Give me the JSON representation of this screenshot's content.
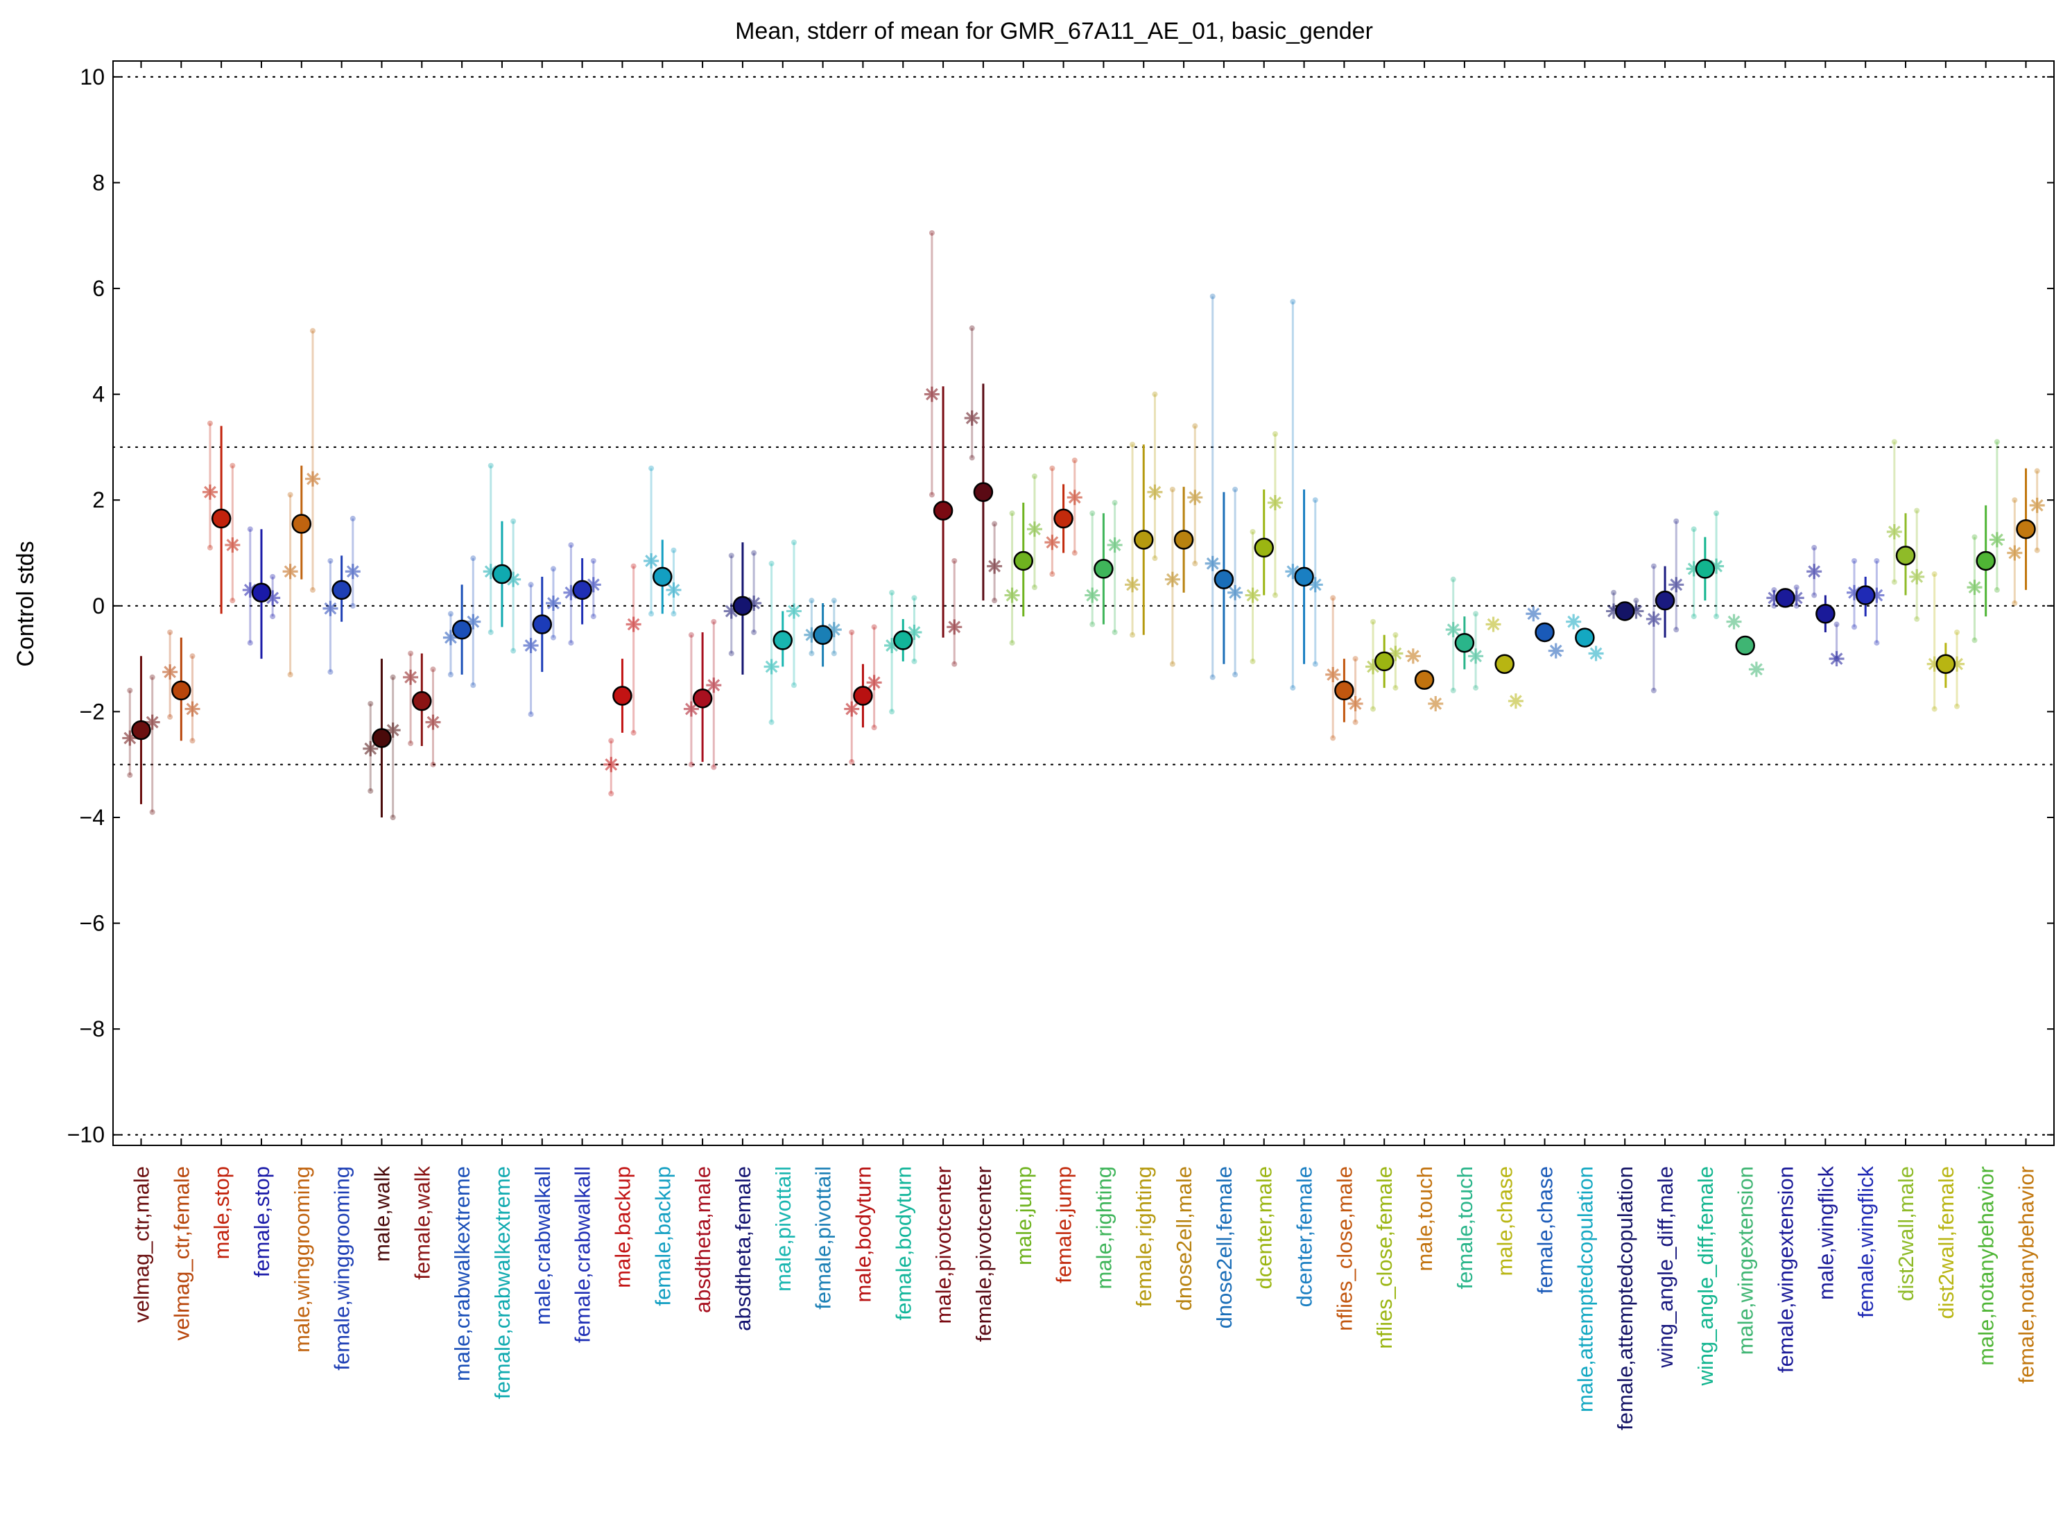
{
  "chart_data": {
    "type": "scatter",
    "title": "Mean, stderr of mean for GMR_67A11_AE_01, basic_gender",
    "xlabel": "",
    "ylabel": "Control stds",
    "ylim": [
      -10.2,
      10.3
    ],
    "yticks": [
      10,
      8,
      6,
      4,
      2,
      0,
      -2,
      -4,
      -6,
      -8,
      -10
    ],
    "ytick_labels": [
      "10",
      "8",
      "6",
      "4",
      "2",
      "0",
      "−2",
      "−4",
      "−6",
      "−8",
      "−10"
    ],
    "reference_lines": [
      10,
      3,
      0,
      -3,
      -10
    ],
    "grid": false,
    "categories": [
      {
        "label": "velmag_ctr,male",
        "color": "#6b0f0f",
        "mean": -2.35,
        "low": -3.75,
        "high": -0.95,
        "side": [
          -2.5,
          -2.2
        ],
        "faint": [
          -3.2,
          -1.6,
          -3.9,
          -1.35
        ]
      },
      {
        "label": "velmag_ctr,female",
        "color": "#b8460b",
        "mean": -1.6,
        "low": -2.55,
        "high": -0.6,
        "side": [
          -1.25,
          -1.95
        ],
        "faint": [
          -2.1,
          -0.5,
          -2.55,
          -0.95
        ]
      },
      {
        "label": "male,stop",
        "color": "#c2220c",
        "mean": 1.65,
        "low": -0.15,
        "high": 3.4,
        "side": [
          2.15,
          1.15
        ],
        "faint": [
          1.1,
          3.45,
          0.1,
          2.65
        ]
      },
      {
        "label": "female,stop",
        "color": "#1a1aa8",
        "mean": 0.25,
        "low": -1.0,
        "high": 1.45,
        "side": [
          0.3,
          0.15
        ],
        "faint": [
          -0.7,
          1.45,
          -0.2,
          0.55
        ]
      },
      {
        "label": "male,winggrooming",
        "color": "#c0630f",
        "mean": 1.55,
        "low": 0.5,
        "high": 2.65,
        "side": [
          0.65,
          2.4
        ],
        "faint": [
          -1.3,
          2.1,
          0.3,
          5.2
        ]
      },
      {
        "label": "female,winggrooming",
        "color": "#1e3fb5",
        "mean": 0.3,
        "low": -0.3,
        "high": 0.95,
        "side": [
          -0.05,
          0.65
        ],
        "faint": [
          -1.25,
          0.85,
          0.0,
          1.65
        ]
      },
      {
        "label": "male,walk",
        "color": "#4a0a0a",
        "mean": -2.5,
        "low": -4.0,
        "high": -1.0,
        "side": [
          -2.7,
          -2.35
        ],
        "faint": [
          -3.5,
          -1.85,
          -4.0,
          -1.35
        ]
      },
      {
        "label": "female,walk",
        "color": "#8a1414",
        "mean": -1.8,
        "low": -2.65,
        "high": -0.9,
        "side": [
          -1.35,
          -2.2
        ],
        "faint": [
          -2.6,
          -0.9,
          -3.0,
          -1.2
        ]
      },
      {
        "label": "male,crabwalkextreme",
        "color": "#1a4fb8",
        "mean": -0.45,
        "low": -1.3,
        "high": 0.4,
        "side": [
          -0.6,
          -0.3
        ],
        "faint": [
          -1.3,
          -0.15,
          -1.5,
          0.9
        ]
      },
      {
        "label": "female,crabwalkextreme",
        "color": "#10aab0",
        "mean": 0.6,
        "low": -0.4,
        "high": 1.6,
        "side": [
          0.65,
          0.5
        ],
        "faint": [
          -0.5,
          2.65,
          -0.85,
          1.6
        ]
      },
      {
        "label": "male,crabwalkall",
        "color": "#1c3cb8",
        "mean": -0.35,
        "low": -1.25,
        "high": 0.55,
        "side": [
          -0.75,
          0.05
        ],
        "faint": [
          -2.05,
          0.4,
          -0.6,
          0.7
        ]
      },
      {
        "label": "female,crabwalkall",
        "color": "#1f2fb5",
        "mean": 0.3,
        "low": -0.35,
        "high": 0.9,
        "side": [
          0.25,
          0.4
        ],
        "faint": [
          -0.7,
          1.15,
          -0.2,
          0.85
        ]
      },
      {
        "label": "male,backup",
        "color": "#c21313",
        "mean": -1.7,
        "low": -2.4,
        "high": -1.0,
        "side": [
          -3.0,
          -0.35
        ],
        "faint": [
          -3.55,
          -2.55,
          -2.4,
          0.75
        ]
      },
      {
        "label": "female,backup",
        "color": "#139fc2",
        "mean": 0.55,
        "low": -0.15,
        "high": 1.25,
        "side": [
          0.85,
          0.3
        ],
        "faint": [
          -0.15,
          2.6,
          -0.15,
          1.05
        ]
      },
      {
        "label": "absdtheta,male",
        "color": "#a8101f",
        "mean": -1.75,
        "low": -2.95,
        "high": -0.5,
        "side": [
          -1.95,
          -1.5
        ],
        "faint": [
          -3.0,
          -0.55,
          -3.05,
          -0.3
        ]
      },
      {
        "label": "absdtheta,female",
        "color": "#141470",
        "mean": 0.0,
        "low": -1.3,
        "high": 1.2,
        "side": [
          -0.1,
          0.05
        ],
        "faint": [
          -0.9,
          0.95,
          -0.5,
          1.0
        ]
      },
      {
        "label": "male,pivottail",
        "color": "#18b5b0",
        "mean": -0.65,
        "low": -1.15,
        "high": -0.1,
        "side": [
          -1.15,
          -0.1
        ],
        "faint": [
          -2.2,
          0.8,
          -1.5,
          1.2
        ]
      },
      {
        "label": "female,pivottail",
        "color": "#1a7fb5",
        "mean": -0.55,
        "low": -1.15,
        "high": 0.05,
        "side": [
          -0.55,
          -0.45
        ],
        "faint": [
          -0.9,
          0.1,
          -0.9,
          0.1
        ]
      },
      {
        "label": "male,bodyturn",
        "color": "#b81111",
        "mean": -1.7,
        "low": -2.3,
        "high": -1.1,
        "side": [
          -1.95,
          -1.45
        ],
        "faint": [
          -2.95,
          -0.5,
          -2.3,
          -0.4
        ]
      },
      {
        "label": "female,bodyturn",
        "color": "#12b59a",
        "mean": -0.65,
        "low": -1.05,
        "high": -0.25,
        "side": [
          -0.75,
          -0.5
        ],
        "faint": [
          -2.0,
          0.25,
          -1.05,
          0.15
        ]
      },
      {
        "label": "male,pivotcenter",
        "color": "#7a0a12",
        "mean": 1.8,
        "low": -0.6,
        "high": 4.15,
        "side": [
          4.0,
          -0.4
        ],
        "faint": [
          2.1,
          7.05,
          -1.1,
          0.85
        ]
      },
      {
        "label": "female,pivotcenter",
        "color": "#5a0a14",
        "mean": 2.15,
        "low": 0.1,
        "high": 4.2,
        "side": [
          3.55,
          0.75
        ],
        "faint": [
          2.8,
          5.25,
          0.1,
          1.55
        ]
      },
      {
        "label": "male,jump",
        "color": "#6fb31f",
        "mean": 0.85,
        "low": -0.2,
        "high": 1.95,
        "side": [
          0.2,
          1.45
        ],
        "faint": [
          -0.7,
          1.75,
          0.35,
          2.45
        ]
      },
      {
        "label": "female,jump",
        "color": "#c22a0c",
        "mean": 1.65,
        "low": 1.0,
        "high": 2.3,
        "side": [
          1.2,
          2.05
        ],
        "faint": [
          0.6,
          2.6,
          1.0,
          2.75
        ]
      },
      {
        "label": "male,righting",
        "color": "#3fb55a",
        "mean": 0.7,
        "low": -0.35,
        "high": 1.75,
        "side": [
          0.2,
          1.15
        ],
        "faint": [
          -0.35,
          1.75,
          -0.5,
          1.95
        ]
      },
      {
        "label": "female,righting",
        "color": "#b59a0f",
        "mean": 1.25,
        "low": -0.55,
        "high": 3.05,
        "side": [
          0.4,
          2.15
        ],
        "faint": [
          -0.55,
          3.05,
          0.9,
          4.0
        ]
      },
      {
        "label": "dnose2ell,male",
        "color": "#b8820f",
        "mean": 1.25,
        "low": 0.25,
        "high": 2.25,
        "side": [
          0.5,
          2.05
        ],
        "faint": [
          -1.1,
          2.2,
          0.8,
          3.4
        ]
      },
      {
        "label": "dnose2ell,female",
        "color": "#1a6eb8",
        "mean": 0.5,
        "low": -1.1,
        "high": 2.15,
        "side": [
          0.8,
          0.25
        ],
        "faint": [
          -1.35,
          5.85,
          -1.3,
          2.2
        ]
      },
      {
        "label": "dcenter,male",
        "color": "#9bb512",
        "mean": 1.1,
        "low": 0.2,
        "high": 2.2,
        "side": [
          0.2,
          1.95
        ],
        "faint": [
          -1.05,
          1.4,
          0.2,
          3.25
        ]
      },
      {
        "label": "dcenter,female",
        "color": "#1a7fc2",
        "mean": 0.55,
        "low": -1.1,
        "high": 2.2,
        "side": [
          0.65,
          0.4
        ],
        "faint": [
          -1.55,
          5.75,
          -1.1,
          2.0
        ]
      },
      {
        "label": "nflies_close,male",
        "color": "#c2570f",
        "mean": -1.6,
        "low": -2.2,
        "high": -1.0,
        "side": [
          -1.3,
          -1.85
        ],
        "faint": [
          -2.5,
          0.15,
          -2.2,
          -1.0
        ]
      },
      {
        "label": "nflies_close,female",
        "color": "#9bb512",
        "mean": -1.05,
        "low": -1.55,
        "high": -0.55,
        "side": [
          -1.15,
          -0.9
        ],
        "faint": [
          -1.95,
          -0.3,
          -1.55,
          -0.55
        ]
      },
      {
        "label": "male,touch",
        "color": "#c2730f",
        "mean": -1.4,
        "low": -1.4,
        "high": -1.4,
        "side": [
          -0.95,
          -1.85
        ],
        "faint": []
      },
      {
        "label": "female,touch",
        "color": "#2ab58a",
        "mean": -0.7,
        "low": -1.2,
        "high": -0.2,
        "side": [
          -0.45,
          -0.95
        ],
        "faint": [
          -1.6,
          0.5,
          -1.55,
          -0.15
        ]
      },
      {
        "label": "male,chase",
        "color": "#b8b512",
        "mean": -1.1,
        "low": -1.1,
        "high": -1.1,
        "side": [
          -0.35,
          -1.8
        ],
        "faint": []
      },
      {
        "label": "female,chase",
        "color": "#1a5ab8",
        "mean": -0.5,
        "low": -0.5,
        "high": -0.5,
        "side": [
          -0.15,
          -0.85
        ],
        "faint": []
      },
      {
        "label": "male,attemptedcopulation",
        "color": "#14a8c2",
        "mean": -0.6,
        "low": -0.6,
        "high": -0.6,
        "side": [
          -0.3,
          -0.9
        ],
        "faint": []
      },
      {
        "label": "female,attemptedcopulation",
        "color": "#141466",
        "mean": -0.1,
        "low": -0.1,
        "high": -0.1,
        "side": [
          -0.1,
          -0.1
        ],
        "faint": [
          -0.05,
          0.25,
          -0.05,
          0.1
        ]
      },
      {
        "label": "wing_angle_diff,male",
        "color": "#1a1a80",
        "mean": 0.1,
        "low": -0.6,
        "high": 0.75,
        "side": [
          -0.25,
          0.4
        ],
        "faint": [
          -1.6,
          0.75,
          -0.45,
          1.6
        ]
      },
      {
        "label": "wing_angle_diff,female",
        "color": "#12b58f",
        "mean": 0.7,
        "low": 0.1,
        "high": 1.3,
        "side": [
          0.7,
          0.75
        ],
        "faint": [
          -0.2,
          1.45,
          -0.2,
          1.75
        ]
      },
      {
        "label": "male,wingextension",
        "color": "#3fb573",
        "mean": -0.75,
        "low": -0.75,
        "high": -0.75,
        "side": [
          -0.3,
          -1.2
        ],
        "faint": []
      },
      {
        "label": "female,wingextension",
        "color": "#1a1a99",
        "mean": 0.15,
        "low": 0.05,
        "high": 0.25,
        "side": [
          0.15,
          0.15
        ],
        "faint": [
          0.0,
          0.3,
          0.0,
          0.35
        ]
      },
      {
        "label": "male,wingflick",
        "color": "#1a1a99",
        "mean": -0.15,
        "low": -0.5,
        "high": 0.2,
        "side": [
          0.65,
          -1.0
        ],
        "faint": [
          0.2,
          1.1,
          -1.0,
          -0.35
        ]
      },
      {
        "label": "female,wingflick",
        "color": "#1f2ab5",
        "mean": 0.2,
        "low": -0.2,
        "high": 0.55,
        "side": [
          0.25,
          0.2
        ],
        "faint": [
          -0.4,
          0.85,
          -0.7,
          0.85
        ]
      },
      {
        "label": "dist2wall,male",
        "color": "#8fbb28",
        "mean": 0.95,
        "low": 0.2,
        "high": 1.75,
        "side": [
          1.4,
          0.55
        ],
        "faint": [
          0.45,
          3.1,
          -0.25,
          1.8
        ]
      },
      {
        "label": "dist2wall,female",
        "color": "#b8b512",
        "mean": -1.1,
        "low": -1.55,
        "high": -0.7,
        "side": [
          -1.1,
          -1.1
        ],
        "faint": [
          -1.95,
          0.6,
          -1.9,
          -0.5
        ]
      },
      {
        "label": "male,notanybehavior",
        "color": "#4fb535",
        "mean": 0.85,
        "low": -0.2,
        "high": 1.9,
        "side": [
          0.35,
          1.25
        ],
        "faint": [
          -0.65,
          1.3,
          0.3,
          3.1
        ]
      },
      {
        "label": "female,notanybehavior",
        "color": "#c2780f",
        "mean": 1.45,
        "low": 0.3,
        "high": 2.6,
        "side": [
          1.0,
          1.9
        ],
        "faint": [
          0.05,
          2.0,
          1.05,
          2.55
        ]
      }
    ]
  }
}
